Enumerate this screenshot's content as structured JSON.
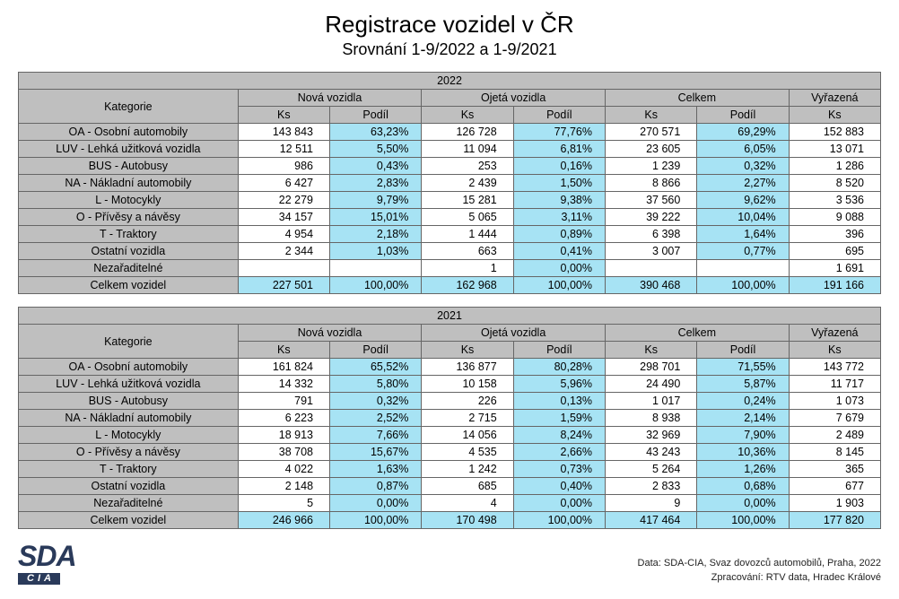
{
  "title": "Registrace vozidel v ČR",
  "subtitle": "Srovnání 1-9/2022 a 1-9/2021",
  "headers": {
    "kategorie": "Kategorie",
    "nova": "Nová vozidla",
    "ojeta": "Ojetá vozidla",
    "celkem": "Celkem",
    "vyrazena": "Vyřazená",
    "ks": "Ks",
    "podil": "Podíl"
  },
  "colors": {
    "header_bg": "#bfbfbf",
    "highlight_bg": "#a7e3f4",
    "border": "#666666",
    "text": "#000000",
    "logo": "#2a3a5a"
  },
  "tables": [
    {
      "year": "2022",
      "rows": [
        {
          "cat": "OA - Osobní automobily",
          "nks": "143 843",
          "npod": "63,23%",
          "oks": "126 728",
          "opod": "77,76%",
          "cks": "270 571",
          "cpod": "69,29%",
          "vyr": "152 883"
        },
        {
          "cat": "LUV - Lehká užitková vozidla",
          "nks": "12 511",
          "npod": "5,50%",
          "oks": "11 094",
          "opod": "6,81%",
          "cks": "23 605",
          "cpod": "6,05%",
          "vyr": "13 071"
        },
        {
          "cat": "BUS - Autobusy",
          "nks": "986",
          "npod": "0,43%",
          "oks": "253",
          "opod": "0,16%",
          "cks": "1 239",
          "cpod": "0,32%",
          "vyr": "1 286"
        },
        {
          "cat": "NA - Nákladní automobily",
          "nks": "6 427",
          "npod": "2,83%",
          "oks": "2 439",
          "opod": "1,50%",
          "cks": "8 866",
          "cpod": "2,27%",
          "vyr": "8 520"
        },
        {
          "cat": "L - Motocykly",
          "nks": "22 279",
          "npod": "9,79%",
          "oks": "15 281",
          "opod": "9,38%",
          "cks": "37 560",
          "cpod": "9,62%",
          "vyr": "3 536"
        },
        {
          "cat": "O - Přívěsy a návěsy",
          "nks": "34 157",
          "npod": "15,01%",
          "oks": "5 065",
          "opod": "3,11%",
          "cks": "39 222",
          "cpod": "10,04%",
          "vyr": "9 088"
        },
        {
          "cat": "T - Traktory",
          "nks": "4 954",
          "npod": "2,18%",
          "oks": "1 444",
          "opod": "0,89%",
          "cks": "6 398",
          "cpod": "1,64%",
          "vyr": "396"
        },
        {
          "cat": "Ostatní vozidla",
          "nks": "2 344",
          "npod": "1,03%",
          "oks": "663",
          "opod": "0,41%",
          "cks": "3 007",
          "cpod": "0,77%",
          "vyr": "695"
        },
        {
          "cat": "Nezařaditelné",
          "nks": "",
          "npod": "",
          "oks": "1",
          "opod": "0,00%",
          "cks": "",
          "cpod": "",
          "vyr": "1 691"
        }
      ],
      "total": {
        "cat": "Celkem vozidel",
        "nks": "227 501",
        "npod": "100,00%",
        "oks": "162 968",
        "opod": "100,00%",
        "cks": "390 468",
        "cpod": "100,00%",
        "vyr": "191 166"
      }
    },
    {
      "year": "2021",
      "rows": [
        {
          "cat": "OA - Osobní automobily",
          "nks": "161 824",
          "npod": "65,52%",
          "oks": "136 877",
          "opod": "80,28%",
          "cks": "298 701",
          "cpod": "71,55%",
          "vyr": "143 772"
        },
        {
          "cat": "LUV - Lehká užitková vozidla",
          "nks": "14 332",
          "npod": "5,80%",
          "oks": "10 158",
          "opod": "5,96%",
          "cks": "24 490",
          "cpod": "5,87%",
          "vyr": "11 717"
        },
        {
          "cat": "BUS - Autobusy",
          "nks": "791",
          "npod": "0,32%",
          "oks": "226",
          "opod": "0,13%",
          "cks": "1 017",
          "cpod": "0,24%",
          "vyr": "1 073"
        },
        {
          "cat": "NA - Nákladní automobily",
          "nks": "6 223",
          "npod": "2,52%",
          "oks": "2 715",
          "opod": "1,59%",
          "cks": "8 938",
          "cpod": "2,14%",
          "vyr": "7 679"
        },
        {
          "cat": "L - Motocykly",
          "nks": "18 913",
          "npod": "7,66%",
          "oks": "14 056",
          "opod": "8,24%",
          "cks": "32 969",
          "cpod": "7,90%",
          "vyr": "2 489"
        },
        {
          "cat": "O - Přívěsy a návěsy",
          "nks": "38 708",
          "npod": "15,67%",
          "oks": "4 535",
          "opod": "2,66%",
          "cks": "43 243",
          "cpod": "10,36%",
          "vyr": "8 145"
        },
        {
          "cat": "T - Traktory",
          "nks": "4 022",
          "npod": "1,63%",
          "oks": "1 242",
          "opod": "0,73%",
          "cks": "5 264",
          "cpod": "1,26%",
          "vyr": "365"
        },
        {
          "cat": "Ostatní vozidla",
          "nks": "2 148",
          "npod": "0,87%",
          "oks": "685",
          "opod": "0,40%",
          "cks": "2 833",
          "cpod": "0,68%",
          "vyr": "677"
        },
        {
          "cat": "Nezařaditelné",
          "nks": "5",
          "npod": "0,00%",
          "oks": "4",
          "opod": "0,00%",
          "cks": "9",
          "cpod": "0,00%",
          "vyr": "1 903"
        }
      ],
      "total": {
        "cat": "Celkem vozidel",
        "nks": "246 966",
        "npod": "100,00%",
        "oks": "170 498",
        "opod": "100,00%",
        "cks": "417 464",
        "cpod": "100,00%",
        "vyr": "177 820"
      }
    }
  ],
  "logo": {
    "line1": "SDA",
    "line2": "CIA"
  },
  "credits": {
    "line1": "Data: SDA-CIA, Svaz dovozců automobilů, Praha, 2022",
    "line2": "Zpracování: RTV data, Hradec Králové"
  }
}
